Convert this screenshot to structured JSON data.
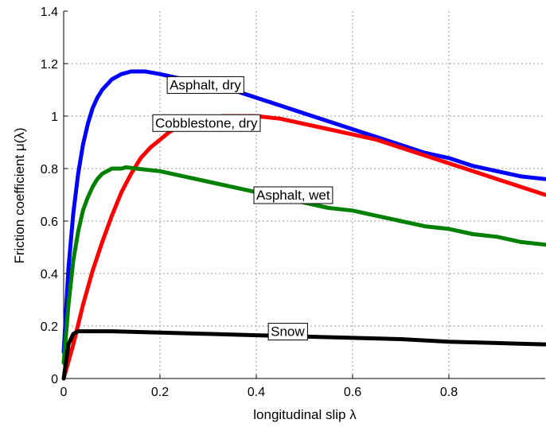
{
  "chart_data": {
    "type": "line",
    "title": "",
    "xlabel": "longitudinal slip  λ",
    "ylabel": "Friction coefficient  μ(λ)",
    "xlim": [
      0,
      1
    ],
    "ylim": [
      0,
      1.4
    ],
    "xticks": [
      0,
      0.2,
      0.4,
      0.6,
      0.8
    ],
    "xtick_labels": [
      "0",
      "0.2",
      "0.4",
      "0.6",
      "0.8"
    ],
    "yticks": [
      0,
      0.2,
      0.4,
      0.6,
      0.8,
      1,
      1.2,
      1.4
    ],
    "ytick_labels": [
      "0",
      "0.2",
      "0.4",
      "0.6",
      "0.8",
      "1",
      "1.2",
      "1.4"
    ],
    "grid": true,
    "series": [
      {
        "name": "Asphalt, dry",
        "color": "#0000ff",
        "x": [
          0,
          0.01,
          0.02,
          0.03,
          0.04,
          0.05,
          0.06,
          0.07,
          0.08,
          0.09,
          0.1,
          0.12,
          0.14,
          0.16,
          0.17,
          0.2,
          0.25,
          0.3,
          0.35,
          0.4,
          0.45,
          0.5,
          0.55,
          0.6,
          0.65,
          0.7,
          0.75,
          0.8,
          0.85,
          0.9,
          0.95,
          1.0
        ],
        "y": [
          0.1,
          0.42,
          0.63,
          0.78,
          0.89,
          0.97,
          1.03,
          1.07,
          1.1,
          1.12,
          1.14,
          1.16,
          1.17,
          1.17,
          1.17,
          1.16,
          1.14,
          1.12,
          1.1,
          1.07,
          1.04,
          1.01,
          0.98,
          0.95,
          0.92,
          0.89,
          0.86,
          0.84,
          0.81,
          0.79,
          0.77,
          0.76
        ]
      },
      {
        "name": "Cobblestone, dry",
        "color": "#ff0000",
        "x": [
          0,
          0.02,
          0.04,
          0.06,
          0.08,
          0.1,
          0.12,
          0.14,
          0.16,
          0.18,
          0.2,
          0.22,
          0.25,
          0.28,
          0.3,
          0.33,
          0.36,
          0.4,
          0.45,
          0.5,
          0.55,
          0.6,
          0.65,
          0.7,
          0.75,
          0.8,
          0.85,
          0.9,
          0.95,
          1.0
        ],
        "y": [
          0.0,
          0.13,
          0.28,
          0.41,
          0.52,
          0.62,
          0.71,
          0.78,
          0.84,
          0.88,
          0.91,
          0.94,
          0.97,
          0.98,
          0.99,
          1.0,
          1.0,
          1.0,
          0.99,
          0.97,
          0.95,
          0.93,
          0.91,
          0.88,
          0.85,
          0.82,
          0.79,
          0.76,
          0.73,
          0.7
        ]
      },
      {
        "name": "Asphalt, wet",
        "color": "#008000",
        "x": [
          0,
          0.01,
          0.02,
          0.03,
          0.04,
          0.05,
          0.06,
          0.07,
          0.08,
          0.1,
          0.12,
          0.13,
          0.15,
          0.2,
          0.25,
          0.3,
          0.35,
          0.4,
          0.45,
          0.5,
          0.55,
          0.6,
          0.65,
          0.7,
          0.75,
          0.8,
          0.85,
          0.9,
          0.95,
          1.0
        ],
        "y": [
          0.06,
          0.28,
          0.45,
          0.56,
          0.64,
          0.69,
          0.73,
          0.76,
          0.78,
          0.8,
          0.8,
          0.805,
          0.8,
          0.79,
          0.77,
          0.75,
          0.73,
          0.71,
          0.69,
          0.67,
          0.65,
          0.64,
          0.62,
          0.6,
          0.58,
          0.57,
          0.55,
          0.54,
          0.52,
          0.51
        ]
      },
      {
        "name": "Snow",
        "color": "#000000",
        "x": [
          0,
          0.01,
          0.02,
          0.03,
          0.05,
          0.1,
          0.2,
          0.3,
          0.4,
          0.5,
          0.6,
          0.7,
          0.8,
          0.9,
          1.0
        ],
        "y": [
          0.0,
          0.13,
          0.17,
          0.18,
          0.18,
          0.18,
          0.175,
          0.17,
          0.165,
          0.16,
          0.155,
          0.15,
          0.14,
          0.135,
          0.13
        ]
      }
    ],
    "annotations": [
      {
        "text": "Asphalt, dry",
        "x": 0.22,
        "y": 1.12
      },
      {
        "text": "Cobblestone, dry",
        "x": 0.19,
        "y": 0.975
      },
      {
        "text": "Asphalt, wet",
        "x": 0.4,
        "y": 0.7
      },
      {
        "text": "Snow",
        "x": 0.43,
        "y": 0.18
      }
    ]
  }
}
